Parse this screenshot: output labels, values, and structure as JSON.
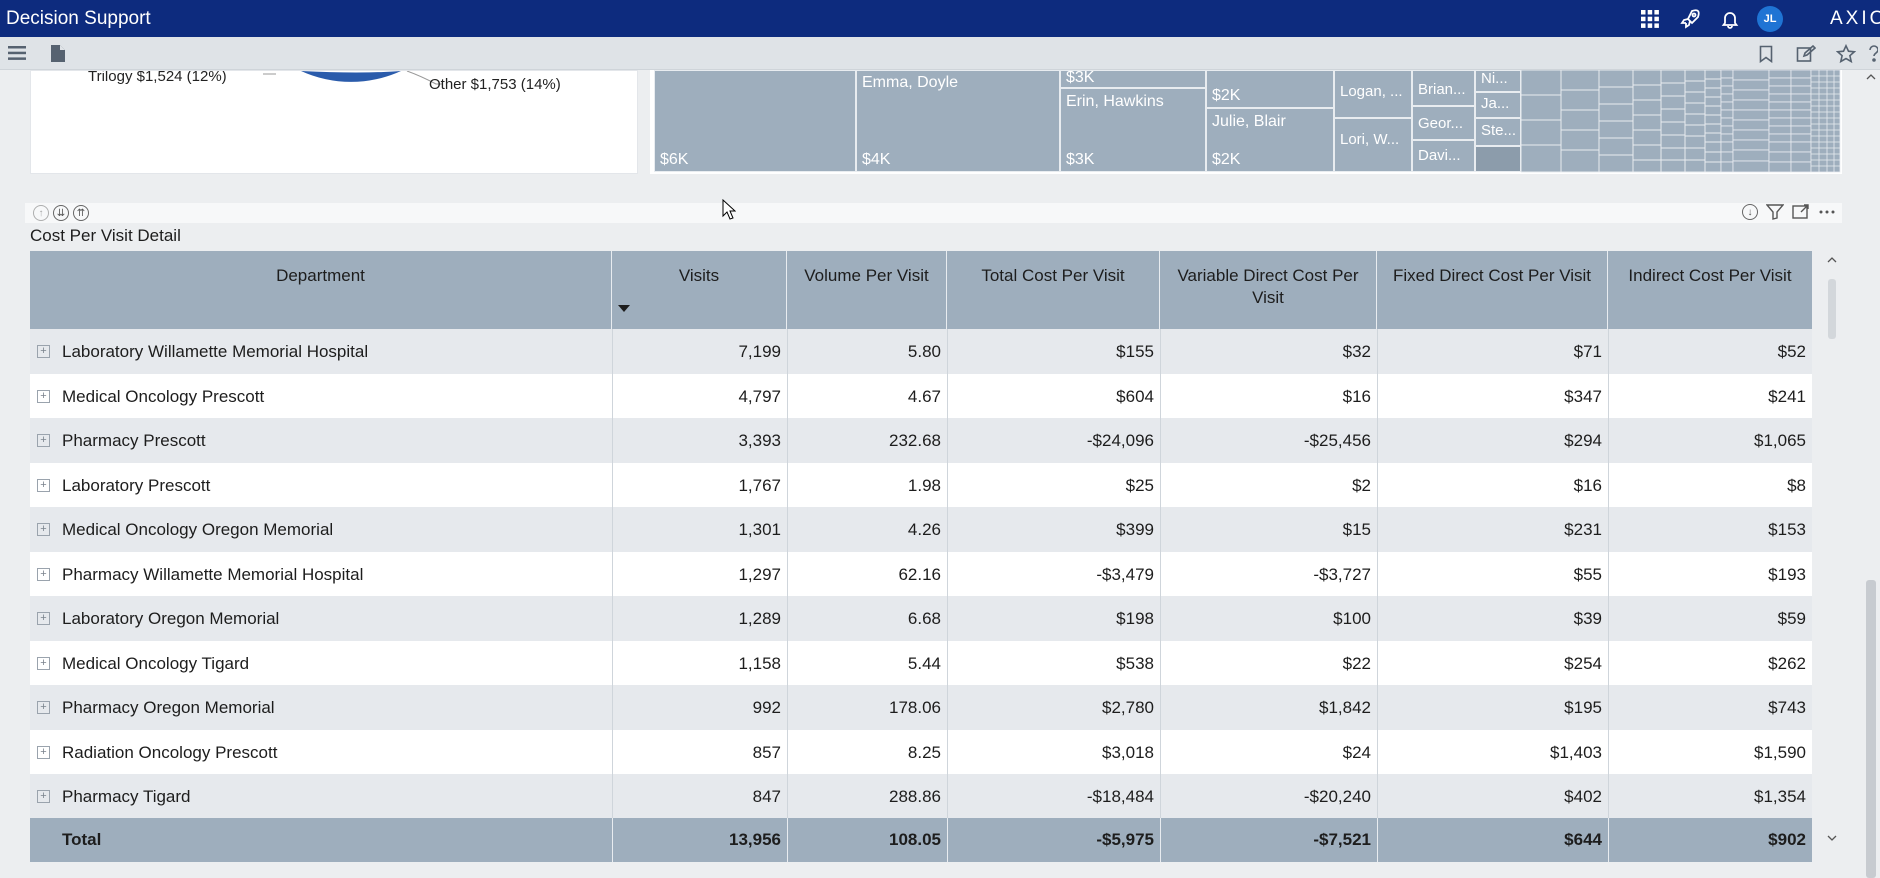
{
  "app": {
    "title": "Decision Support",
    "brand": "AXIOM",
    "user_initials": "JL"
  },
  "pie": {
    "labels": [
      "Trilogy $1,524 (12%)",
      "Other $1,753 (14%)"
    ]
  },
  "treemap": {
    "cells": [
      {
        "top": "",
        "bottom": "$6K"
      },
      {
        "top": "Emma, Doyle",
        "bottom": "$4K"
      },
      {
        "top": "$3K",
        "bottom": ""
      },
      {
        "top": "Erin, Hawkins",
        "bottom": "$3K"
      },
      {
        "top": "",
        "bottom": "$2K"
      },
      {
        "top": "Julie, Blair",
        "bottom": "$2K"
      },
      {
        "top": "Logan, ...",
        "bottom": ""
      },
      {
        "top": "Lori, W...",
        "bottom": ""
      },
      {
        "top": "Brian...",
        "bottom": ""
      },
      {
        "top": "Geor...",
        "bottom": ""
      },
      {
        "top": "Davi...",
        "bottom": ""
      },
      {
        "top": "Ni...",
        "bottom": ""
      },
      {
        "top": "Ja...",
        "bottom": ""
      },
      {
        "top": "Ste...",
        "bottom": ""
      }
    ]
  },
  "grid": {
    "title": "Cost Per Visit Detail",
    "columns": [
      "Department",
      "Visits",
      "Volume Per Visit",
      "Total Cost Per Visit",
      "Variable Direct Cost Per Visit",
      "Fixed Direct Cost Per Visit",
      "Indirect Cost Per Visit"
    ],
    "rows": [
      {
        "dept": "Laboratory Willamette Memorial Hospital",
        "visits": "7,199",
        "vpv": "5.80",
        "tcpv": "$155",
        "vdc": "$32",
        "fdc": "$71",
        "ic": "$52"
      },
      {
        "dept": "Medical Oncology Prescott",
        "visits": "4,797",
        "vpv": "4.67",
        "tcpv": "$604",
        "vdc": "$16",
        "fdc": "$347",
        "ic": "$241"
      },
      {
        "dept": "Pharmacy Prescott",
        "visits": "3,393",
        "vpv": "232.68",
        "tcpv": "-$24,096",
        "vdc": "-$25,456",
        "fdc": "$294",
        "ic": "$1,065"
      },
      {
        "dept": "Laboratory Prescott",
        "visits": "1,767",
        "vpv": "1.98",
        "tcpv": "$25",
        "vdc": "$2",
        "fdc": "$16",
        "ic": "$8"
      },
      {
        "dept": "Medical Oncology Oregon Memorial",
        "visits": "1,301",
        "vpv": "4.26",
        "tcpv": "$399",
        "vdc": "$15",
        "fdc": "$231",
        "ic": "$153"
      },
      {
        "dept": "Pharmacy Willamette Memorial Hospital",
        "visits": "1,297",
        "vpv": "62.16",
        "tcpv": "-$3,479",
        "vdc": "-$3,727",
        "fdc": "$55",
        "ic": "$193"
      },
      {
        "dept": "Laboratory Oregon Memorial",
        "visits": "1,289",
        "vpv": "6.68",
        "tcpv": "$198",
        "vdc": "$100",
        "fdc": "$39",
        "ic": "$59"
      },
      {
        "dept": "Medical Oncology Tigard",
        "visits": "1,158",
        "vpv": "5.44",
        "tcpv": "$538",
        "vdc": "$22",
        "fdc": "$254",
        "ic": "$262"
      },
      {
        "dept": "Pharmacy Oregon Memorial",
        "visits": "992",
        "vpv": "178.06",
        "tcpv": "$2,780",
        "vdc": "$1,842",
        "fdc": "$195",
        "ic": "$743"
      },
      {
        "dept": "Radiation Oncology Prescott",
        "visits": "857",
        "vpv": "8.25",
        "tcpv": "$3,018",
        "vdc": "$24",
        "fdc": "$1,403",
        "ic": "$1,590"
      },
      {
        "dept": "Pharmacy Tigard",
        "visits": "847",
        "vpv": "288.86",
        "tcpv": "-$18,484",
        "vdc": "-$20,240",
        "fdc": "$402",
        "ic": "$1,354"
      }
    ],
    "total": {
      "label": "Total",
      "visits": "13,956",
      "vpv": "108.05",
      "tcpv": "-$5,975",
      "vdc": "-$7,521",
      "fdc": "$644",
      "ic": "$902"
    }
  },
  "colors": {
    "appbar": "#0d2b7e",
    "header": "#9eaebd",
    "alt_row": "#e6e9ed",
    "avatar": "#1f74d4"
  },
  "icons": [
    "apps-grid-icon",
    "rocket-icon",
    "bell-icon",
    "menu-icon",
    "document-icon",
    "bookmark-icon",
    "edit-icon",
    "star-icon",
    "collapse-up-icon",
    "expand-down-icon",
    "expand-all-icon",
    "download-icon",
    "filter-icon",
    "maximize-icon",
    "more-icon"
  ]
}
